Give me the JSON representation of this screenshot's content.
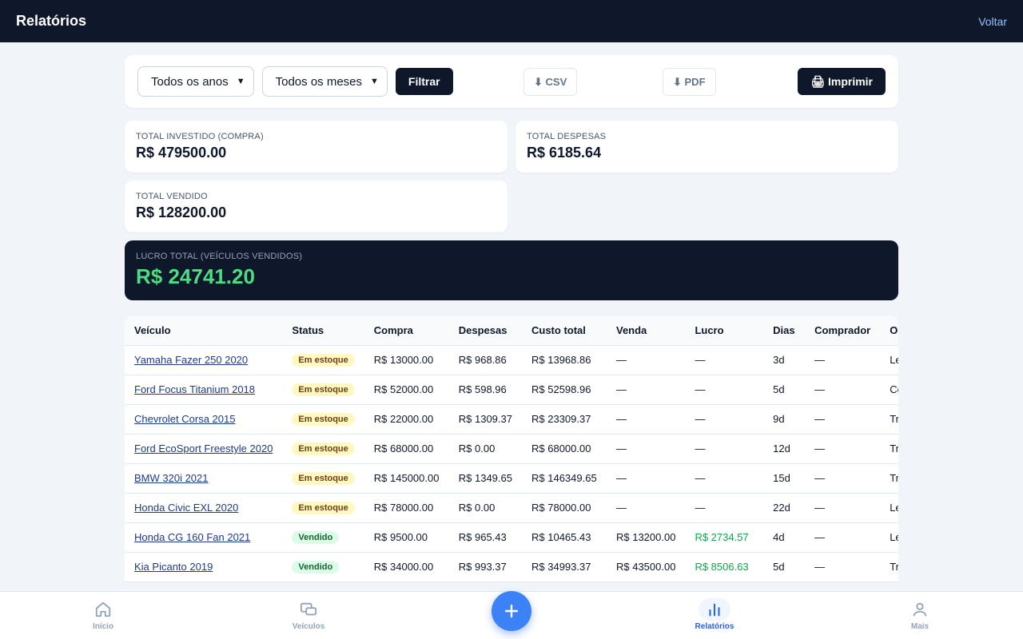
{
  "header": {
    "title": "Relatórios",
    "back_label": "Voltar"
  },
  "filters": {
    "year": "Todos os anos",
    "month": "Todos os meses",
    "filter_label": "Filtrar",
    "csv_label": "⬇ CSV",
    "pdf_label": "⬇ PDF",
    "print_label": "🖨 Imprimir"
  },
  "summary": [
    {
      "label": "TOTAL INVESTIDO (COMPRA)",
      "value": "R$ 479500.00"
    },
    {
      "label": "TOTAL DESPESAS",
      "value": "R$ 6185.64"
    },
    {
      "label": "TOTAL VENDIDO",
      "value": "R$ 128200.00"
    }
  ],
  "profit": {
    "label": "LUCRO TOTAL (VEÍCULOS VENDIDOS)",
    "value": "R$ 24741.20"
  },
  "table": {
    "columns": [
      "Veículo",
      "Status",
      "Compra",
      "Despesas",
      "Custo total",
      "Venda",
      "Lucro",
      "Dias",
      "Comprador",
      "Ori"
    ],
    "rows": [
      [
        "Yamaha Fazer 250 2020",
        "Em estoque",
        "R$ 13000.00",
        "R$ 968.86",
        "R$ 13968.86",
        "—",
        "—",
        "3d",
        "—",
        "Lei"
      ],
      [
        "Ford Focus Titanium 2018",
        "Em estoque",
        "R$ 52000.00",
        "R$ 598.96",
        "R$ 52598.96",
        "—",
        "—",
        "5d",
        "—",
        "Co"
      ],
      [
        "Chevrolet Corsa 2015",
        "Em estoque",
        "R$ 22000.00",
        "R$ 1309.37",
        "R$ 23309.37",
        "—",
        "—",
        "9d",
        "—",
        "Tr"
      ],
      [
        "Ford EcoSport Freestyle 2020",
        "Em estoque",
        "R$ 68000.00",
        "R$ 0.00",
        "R$ 68000.00",
        "—",
        "—",
        "12d",
        "—",
        "Tr"
      ],
      [
        "BMW 320i 2021",
        "Em estoque",
        "R$ 145000.00",
        "R$ 1349.65",
        "R$ 146349.65",
        "—",
        "—",
        "15d",
        "—",
        "Tr"
      ],
      [
        "Honda Civic EXL 2020",
        "Em estoque",
        "R$ 78000.00",
        "R$ 0.00",
        "R$ 78000.00",
        "—",
        "—",
        "22d",
        "—",
        "Lei"
      ],
      [
        "Honda CG 160 Fan 2021",
        "Vendido",
        "R$ 9500.00",
        "R$ 965.43",
        "R$ 10465.43",
        "R$ 13200.00",
        "R$ 2734.57",
        "4d",
        "—",
        "Lei"
      ],
      [
        "Kia Picanto 2019",
        "Vendido",
        "R$ 34000.00",
        "R$ 993.37",
        "R$ 34993.37",
        "R$ 43500.00",
        "R$ 8506.63",
        "5d",
        "—",
        "Tr"
      ]
    ]
  },
  "nav": {
    "home": "Início",
    "vehicles": "Veículos",
    "reports": "Relatórios",
    "more": "Mais"
  }
}
